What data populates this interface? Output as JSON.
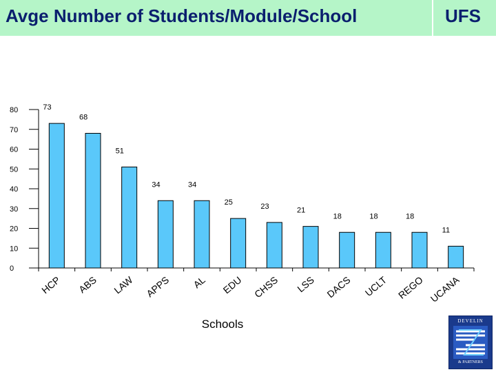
{
  "slide": {
    "title": "Avge Number of Students/Module/School",
    "brand": "UFS"
  },
  "logo": {
    "name": "DEVELIN",
    "sub": "& PARTNERS"
  },
  "colors": {
    "banner": "#b5f5c8",
    "title_text": "#0b1f6e",
    "bar_fill": "#5ac8fa",
    "bar_stroke": "#000000"
  },
  "chart_data": {
    "type": "bar",
    "title": "",
    "xlabel": "Schools",
    "ylabel": "",
    "categories": [
      "HCP",
      "ABS",
      "LAW",
      "APPS",
      "AL",
      "EDU",
      "CHSS",
      "LSS",
      "DACS",
      "UCLT",
      "REGO",
      "UCANA"
    ],
    "values": [
      73,
      68,
      51,
      34,
      34,
      25,
      23,
      21,
      18,
      18,
      18,
      11
    ],
    "ylim": [
      0,
      80
    ],
    "yticks": [
      0,
      10,
      20,
      30,
      40,
      50,
      60,
      70,
      80
    ],
    "grid": false,
    "legend": "none",
    "data_labels": true
  }
}
